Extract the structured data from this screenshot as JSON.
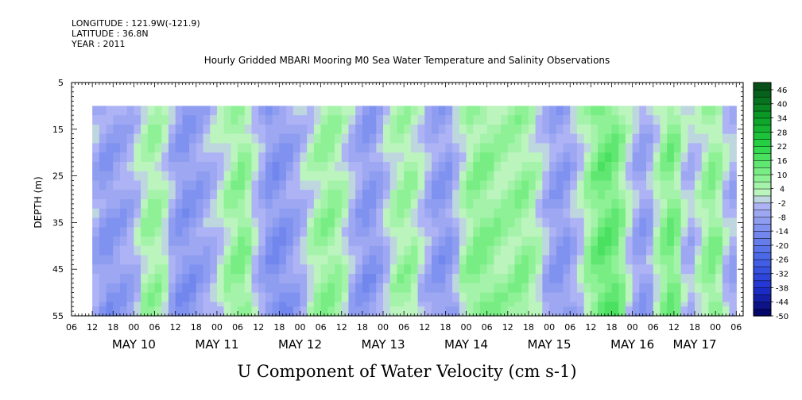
{
  "header": {
    "longitude": "LONGITUDE : 121.9W(-121.9)",
    "latitude": "LATITUDE : 36.8N",
    "year": "YEAR : 2011"
  },
  "chart_data": {
    "type": "heatmap",
    "title": "Hourly Gridded MBARI Mooring M0 Sea Water Temperature and Salinity Observations",
    "xlabel": "U Component of Water Velocity (cm s-1)",
    "ylabel": "DEPTH (m)",
    "x_tick_labels": [
      "06",
      "12",
      "18",
      "00",
      "06",
      "12",
      "18",
      "00",
      "06",
      "12",
      "18",
      "00",
      "06",
      "12",
      "18",
      "00",
      "06",
      "12",
      "18",
      "00",
      "06",
      "12",
      "18",
      "00",
      "06",
      "12",
      "18",
      "00",
      "06",
      "12",
      "18",
      "00",
      "06"
    ],
    "x_date_labels": [
      "MAY 10",
      "MAY 11",
      "MAY 12",
      "MAY 13",
      "MAY 14",
      "MAY 15",
      "MAY 16",
      "MAY 17"
    ],
    "date_label_hours": [
      18,
      42,
      66,
      90,
      114,
      138,
      162,
      180
    ],
    "x_range_hours": [
      0,
      194
    ],
    "data_x_range_hours": [
      6,
      192
    ],
    "y_ticks": [
      5,
      15,
      25,
      35,
      45,
      55
    ],
    "ylim": [
      5,
      55
    ],
    "y_reversed": true,
    "data_depth_range": [
      10,
      53
    ],
    "colorbar": {
      "labels": [
        "46",
        "40",
        "34",
        "28",
        "22",
        "16",
        "10",
        "4",
        "-2",
        "-8",
        "-14",
        "-20",
        "-26",
        "-32",
        "-38",
        "-44",
        "-50"
      ],
      "levels": [
        -50,
        -47,
        -44,
        -41,
        -38,
        -35,
        -32,
        -29,
        -26,
        -23,
        -20,
        -17,
        -14,
        -11,
        -8,
        -5,
        -2,
        1,
        4,
        7,
        10,
        13,
        16,
        19,
        22,
        25,
        28,
        31,
        34,
        37,
        40,
        43,
        46,
        49
      ]
    },
    "u_profile": {
      "hours": [
        6,
        10,
        14,
        18,
        22,
        26,
        30,
        34,
        38,
        42,
        46,
        50,
        54,
        58,
        62,
        66,
        70,
        74,
        78,
        82,
        86,
        90,
        94,
        98,
        102,
        106,
        110,
        114,
        118,
        122,
        126,
        130,
        134,
        138,
        142,
        146,
        150,
        154,
        158,
        162,
        166,
        170,
        174,
        178,
        182,
        186,
        190
      ],
      "values": [
        -4,
        -10,
        -8,
        -5,
        6,
        5,
        -9,
        -11,
        -7,
        -2,
        6,
        9,
        -4,
        -12,
        -10,
        -5,
        3,
        8,
        4,
        -6,
        -11,
        -5,
        5,
        6,
        -3,
        -10,
        -8,
        6,
        9,
        7,
        5,
        8,
        4,
        -7,
        -10,
        -3,
        8,
        14,
        11,
        -4,
        -9,
        6,
        12,
        -6,
        3,
        10,
        -5
      ]
    }
  }
}
